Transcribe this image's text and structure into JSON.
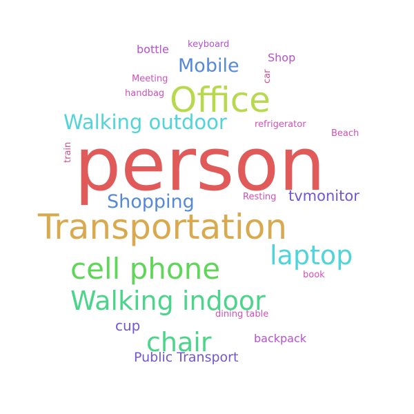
{
  "words": [
    {
      "text": "person",
      "color": "#e05a5a"
    },
    {
      "text": "Transportation",
      "color": "#d9a94f"
    },
    {
      "text": "Office",
      "color": "#b8d84e"
    },
    {
      "text": "cell phone",
      "color": "#5fd65a"
    },
    {
      "text": "Walking indoor",
      "color": "#4bd48a"
    },
    {
      "text": "laptop",
      "color": "#4fd4d9"
    },
    {
      "text": "chair",
      "color": "#4bd48a"
    },
    {
      "text": "Walking outdoor",
      "color": "#4fd4d9"
    },
    {
      "text": "Mobile",
      "color": "#5588d8"
    },
    {
      "text": "Shopping",
      "color": "#5588d8"
    },
    {
      "text": "tvmonitor",
      "color": "#7055d8"
    },
    {
      "text": "Public Transport",
      "color": "#7055d8"
    },
    {
      "text": "cup",
      "color": "#7055d8"
    },
    {
      "text": "bottle",
      "color": "#b84fd4"
    },
    {
      "text": "backpack",
      "color": "#b84fd4"
    },
    {
      "text": "Shop",
      "color": "#b84fd4"
    },
    {
      "text": "keyboard",
      "color": "#b84fd4"
    },
    {
      "text": "Meeting",
      "color": "#d44fb8"
    },
    {
      "text": "handbag",
      "color": "#d44fb8"
    },
    {
      "text": "refrigerator",
      "color": "#d44fb8"
    },
    {
      "text": "Beach",
      "color": "#d44fb8"
    },
    {
      "text": "Resting",
      "color": "#d44fb8"
    },
    {
      "text": "book",
      "color": "#d44fb8"
    },
    {
      "text": "dining table",
      "color": "#d44fb8"
    },
    {
      "text": "train",
      "color": "#d44f8a"
    },
    {
      "text": "car",
      "color": "#d44f8a"
    }
  ]
}
